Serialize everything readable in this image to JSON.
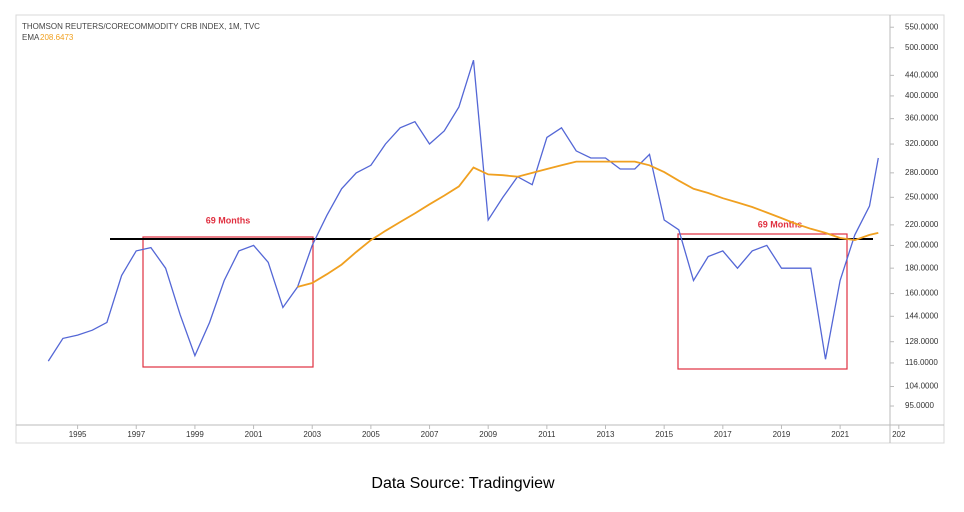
{
  "chart_data": {
    "type": "line",
    "title": "THOMSON REUTERS/CORECOMMODITY CRB INDEX, 1M, TVC",
    "indicator_label": "EMA",
    "indicator_value": "208.6473",
    "caption": "Data Source: Tradingview",
    "annotations": [
      "69 Months",
      "69 Months"
    ],
    "log_scale": true,
    "x": [
      1994.0,
      1994.5,
      1995.0,
      1995.5,
      1996.0,
      1996.5,
      1997.0,
      1997.5,
      1998.0,
      1998.5,
      1999.0,
      1999.5,
      2000.0,
      2000.5,
      2001.0,
      2001.5,
      2002.0,
      2002.5,
      2003.0,
      2003.5,
      2004.0,
      2004.5,
      2005.0,
      2005.5,
      2006.0,
      2006.5,
      2007.0,
      2007.5,
      2008.0,
      2008.5,
      2009.0,
      2009.5,
      2010.0,
      2010.5,
      2011.0,
      2011.5,
      2012.0,
      2012.5,
      2013.0,
      2013.5,
      2014.0,
      2014.5,
      2015.0,
      2015.5,
      2016.0,
      2016.5,
      2017.0,
      2017.5,
      2018.0,
      2018.5,
      2019.0,
      2019.5,
      2020.0,
      2020.5,
      2021.0,
      2021.5,
      2022.0,
      2022.3
    ],
    "series": [
      {
        "name": "CRB Index",
        "color": "#5467d6",
        "values": [
          117,
          130,
          132,
          135,
          140,
          174,
          195,
          198,
          180,
          145,
          120,
          140,
          170,
          195,
          200,
          185,
          150,
          165,
          200,
          230,
          260,
          280,
          290,
          320,
          345,
          355,
          320,
          340,
          380,
          472,
          225,
          250,
          275,
          265,
          330,
          345,
          310,
          300,
          300,
          285,
          285,
          305,
          225,
          215,
          170,
          190,
          195,
          180,
          195,
          200,
          180,
          180,
          180,
          118,
          170,
          210,
          240,
          300
        ]
      },
      {
        "name": "EMA",
        "color": "#f0a020",
        "values": [
          null,
          null,
          null,
          null,
          null,
          null,
          null,
          null,
          null,
          null,
          null,
          null,
          null,
          null,
          null,
          null,
          null,
          165,
          168,
          175,
          183,
          194,
          205,
          214,
          223,
          232,
          242,
          252,
          263,
          287,
          278,
          277,
          275,
          280,
          285,
          290,
          295,
          295,
          295,
          295,
          295,
          290,
          281,
          270,
          260,
          255,
          249,
          244,
          239,
          233,
          227,
          221,
          216,
          212,
          207,
          205,
          210,
          212
        ]
      }
    ],
    "xlim": [
      1992.9,
      2022.7
    ],
    "ylim": [
      87,
      574
    ],
    "xticks": [
      1995,
      1997,
      1999,
      2001,
      2003,
      2005,
      2007,
      2009,
      2011,
      2013,
      2015,
      2017,
      2019,
      2021,
      {
        "value": 2023,
        "label": "202"
      }
    ],
    "yticks": [
      {
        "value": 95,
        "label": "95.0000"
      },
      {
        "value": 104,
        "label": "104.0000"
      },
      {
        "value": 116,
        "label": "116.0000"
      },
      {
        "value": 128,
        "label": "128.0000"
      },
      {
        "value": 144,
        "label": "144.0000"
      },
      {
        "value": 160,
        "label": "160.0000"
      },
      {
        "value": 180,
        "label": "180.0000"
      },
      {
        "value": 200,
        "label": "200.0000"
      },
      {
        "value": 220,
        "label": "220.0000"
      },
      {
        "value": 250,
        "label": "250.0000"
      },
      {
        "value": 280,
        "label": "280.0000"
      },
      {
        "value": 320,
        "label": "320.0000"
      },
      {
        "value": 360,
        "label": "360.0000"
      },
      {
        "value": 400,
        "label": "400.0000"
      },
      {
        "value": 440,
        "label": "440.0000"
      },
      {
        "value": 500,
        "label": "500.0000"
      },
      {
        "value": 550,
        "label": "550.0000"
      }
    ]
  }
}
